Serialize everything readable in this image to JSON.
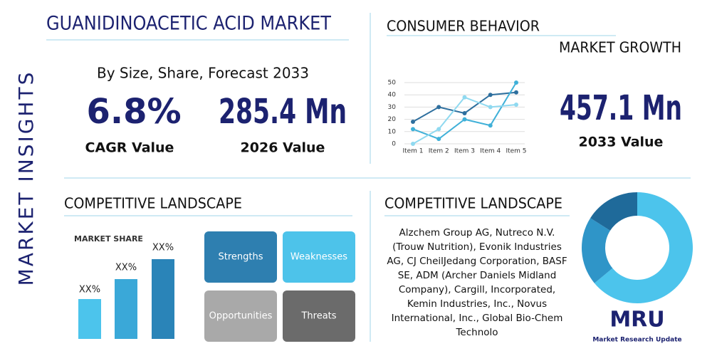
{
  "side_label": "MARKET INSIGHTS",
  "header": {
    "title": "GUANIDINOACETIC ACID MARKET",
    "subtitle": "By Size, Share, Forecast 2033"
  },
  "stats": [
    {
      "value": "6.8%",
      "label": "CAGR Value"
    },
    {
      "value": "285.4 Mn",
      "label": "2026 Value"
    }
  ],
  "consumer": {
    "title": "CONSUMER BEHAVIOR",
    "subtitle": "MARKET GROWTH",
    "value": "457.1 Mn",
    "label": "2033 Value",
    "chart": {
      "type": "line",
      "categories": [
        "Item 1",
        "Item 2",
        "Item 3",
        "Item 4",
        "Item 5"
      ],
      "ylim": [
        0,
        50
      ],
      "yticks": [
        0,
        10,
        20,
        30,
        40,
        50
      ],
      "series": [
        {
          "color": "#2e6f9e",
          "values": [
            18,
            30,
            25,
            40,
            42
          ]
        },
        {
          "color": "#3fb0d8",
          "values": [
            12,
            4,
            20,
            15,
            50
          ]
        },
        {
          "color": "#8fd9f0",
          "values": [
            0,
            12,
            38,
            30,
            32
          ]
        }
      ]
    }
  },
  "landscape": {
    "title": "COMPETITIVE LANDSCAPE",
    "bar_title": "MARKET SHARE",
    "bar_labels": [
      "XX%",
      "XX%",
      "XX%"
    ],
    "swot": [
      "Strengths",
      "Weaknesses",
      "Opportunities",
      "Threats"
    ]
  },
  "companies": {
    "title": "COMPETITIVE LANDSCAPE",
    "lines": [
      "Alzchem Group AG, Nutreco N.V.",
      "(Trouw Nutrition), Evonik Industries",
      "AG, CJ CheilJedang Corporation, BASF",
      "SE, ADM (Archer Daniels Midland",
      "Company), Cargill, Incorporated,",
      "Kemin Industries, Inc., Novus",
      "International, Inc., Global Bio-Chem",
      "Technolo"
    ],
    "chart": {
      "type": "pie",
      "values": [
        64,
        20,
        16
      ],
      "colors": [
        "#4cc4ec",
        "#2f95c8",
        "#1f6a9a"
      ]
    }
  },
  "logo": {
    "mark": "MRU",
    "name": "Market Research Update"
  }
}
